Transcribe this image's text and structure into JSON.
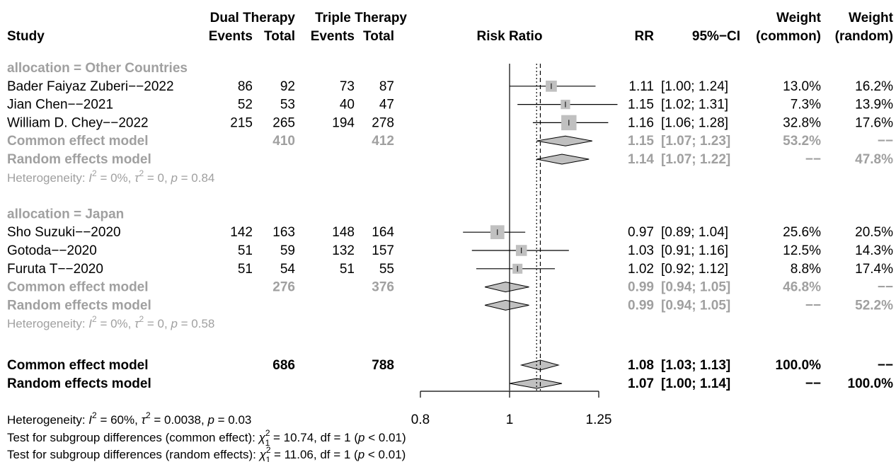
{
  "colors": {
    "text": "#000000",
    "subgroup_text": "#a0a0a0",
    "box_fill": "#c0c0c0",
    "diamond_fill": "#c0c0c0",
    "line": "#000000"
  },
  "header": {
    "study": "Study",
    "dual_group": "Dual Therapy",
    "triple_group": "Triple Therapy",
    "events": "Events",
    "total": "Total",
    "risk_ratio": "Risk Ratio",
    "rr": "RR",
    "ci": "95%−CI",
    "weight": "Weight",
    "common": "(common)",
    "random": "(random)"
  },
  "chart_data": {
    "type": "forest",
    "measure": "Risk Ratio",
    "x_scale": "log",
    "xlim": [
      0.8,
      1.25
    ],
    "x_ticks": [
      0.8,
      1,
      1.25
    ],
    "x_tick_labels": [
      "0.8",
      "1",
      "1.25"
    ],
    "null_value": 1,
    "common_effect_line": 1.08,
    "random_effect_line": 1.07,
    "subgroups": [
      {
        "label": "allocation = Other Countries",
        "studies": [
          {
            "name": "Bader Faiyaz Zuberi−−2022",
            "dual_events": "86",
            "dual_total": "92",
            "triple_events": "73",
            "triple_total": "87",
            "rr": 1.11,
            "lo": 1.0,
            "hi": 1.24,
            "rr_text": "1.11",
            "ci_text": "[1.00; 1.24]",
            "w_common": "13.0%",
            "w_random": "16.2%",
            "weight_common": 13.0
          },
          {
            "name": "Jian Chen−−2021",
            "dual_events": "52",
            "dual_total": "53",
            "triple_events": "40",
            "triple_total": "47",
            "rr": 1.15,
            "lo": 1.02,
            "hi": 1.31,
            "rr_text": "1.15",
            "ci_text": "[1.02; 1.31]",
            "w_common": "7.3%",
            "w_random": "13.9%",
            "weight_common": 7.3
          },
          {
            "name": "William D. Chey−−2022",
            "dual_events": "215",
            "dual_total": "265",
            "triple_events": "194",
            "triple_total": "278",
            "rr": 1.16,
            "lo": 1.06,
            "hi": 1.28,
            "rr_text": "1.16",
            "ci_text": "[1.06; 1.28]",
            "w_common": "32.8%",
            "w_random": "17.6%",
            "weight_common": 32.8
          }
        ],
        "common": {
          "label": "Common effect model",
          "dual_total": "410",
          "triple_total": "412",
          "rr": 1.15,
          "lo": 1.07,
          "hi": 1.23,
          "rr_text": "1.15",
          "ci_text": "[1.07; 1.23]",
          "w_common": "53.2%",
          "w_random": "−−"
        },
        "random": {
          "label": "Random effects model",
          "rr": 1.14,
          "lo": 1.07,
          "hi": 1.22,
          "rr_text": "1.14",
          "ci_text": "[1.07; 1.22]",
          "w_common": "−−",
          "w_random": "47.8%"
        },
        "heterogeneity": {
          "prefix": "Heterogeneity: ",
          "i_sym": "I",
          "i_sup": "2",
          "i_val": " = 0%,  ",
          "tau_sym": "τ",
          "tau_sup": "2",
          "tau_val": " = 0, ",
          "p_sym": "p",
          "p_val": " = 0.84"
        }
      },
      {
        "label": "allocation = Japan",
        "studies": [
          {
            "name": "Sho Suzuki−−2020",
            "dual_events": "142",
            "dual_total": "163",
            "triple_events": "148",
            "triple_total": "164",
            "rr": 0.97,
            "lo": 0.89,
            "hi": 1.04,
            "rr_text": "0.97",
            "ci_text": "[0.89; 1.04]",
            "w_common": "25.6%",
            "w_random": "20.5%",
            "weight_common": 25.6
          },
          {
            "name": "Gotoda−−2020",
            "dual_events": "51",
            "dual_total": "59",
            "triple_events": "132",
            "triple_total": "157",
            "rr": 1.03,
            "lo": 0.91,
            "hi": 1.16,
            "rr_text": "1.03",
            "ci_text": "[0.91; 1.16]",
            "w_common": "12.5%",
            "w_random": "14.3%",
            "weight_common": 12.5
          },
          {
            "name": "Furuta T−−2020",
            "dual_events": "51",
            "dual_total": "54",
            "triple_events": "51",
            "triple_total": "55",
            "rr": 1.02,
            "lo": 0.92,
            "hi": 1.12,
            "rr_text": "1.02",
            "ci_text": "[0.92; 1.12]",
            "w_common": "8.8%",
            "w_random": "17.4%",
            "weight_common": 8.8
          }
        ],
        "common": {
          "label": "Common effect model",
          "dual_total": "276",
          "triple_total": "376",
          "rr": 0.99,
          "lo": 0.94,
          "hi": 1.05,
          "rr_text": "0.99",
          "ci_text": "[0.94; 1.05]",
          "w_common": "46.8%",
          "w_random": "−−"
        },
        "random": {
          "label": "Random effects model",
          "rr": 0.99,
          "lo": 0.94,
          "hi": 1.05,
          "rr_text": "0.99",
          "ci_text": "[0.94; 1.05]",
          "w_common": "−−",
          "w_random": "52.2%"
        },
        "heterogeneity": {
          "prefix": "Heterogeneity: ",
          "i_sym": "I",
          "i_sup": "2",
          "i_val": " = 0%,  ",
          "tau_sym": "τ",
          "tau_sup": "2",
          "tau_val": " = 0, ",
          "p_sym": "p",
          "p_val": " = 0.58"
        }
      }
    ],
    "overall": {
      "common": {
        "label": "Common effect model",
        "dual_total": "686",
        "triple_total": "788",
        "rr": 1.08,
        "lo": 1.03,
        "hi": 1.13,
        "rr_text": "1.08",
        "ci_text": "[1.03; 1.13]",
        "w_common": "100.0%",
        "w_random": "−−"
      },
      "random": {
        "label": "Random effects model",
        "rr": 1.07,
        "lo": 1.0,
        "hi": 1.14,
        "rr_text": "1.07",
        "ci_text": "[1.00; 1.14]",
        "w_common": "−−",
        "w_random": "100.0%"
      },
      "heterogeneity": {
        "prefix": "Heterogeneity: ",
        "i_sym": "I",
        "i_sup": "2",
        "i_val": " = 60%,  ",
        "tau_sym": "τ",
        "tau_sup": "2",
        "tau_val": " = 0.0038, ",
        "p_sym": "p",
        "p_val": " = 0.03"
      }
    },
    "subgroup_tests": [
      {
        "prefix": "Test for subgroup differences (common effect):  ",
        "chi_sym": "χ",
        "chi_sup": "2",
        "chi_sub": "1",
        "value": " = 10.74, df = 1 (",
        "p_sym": "p",
        "p_val": " < 0.01)"
      },
      {
        "prefix": "Test for subgroup differences (random effects):  ",
        "chi_sym": "χ",
        "chi_sup": "2",
        "chi_sub": "1",
        "value": " = 11.06, df = 1 (",
        "p_sym": "p",
        "p_val": " < 0.01)"
      }
    ]
  }
}
